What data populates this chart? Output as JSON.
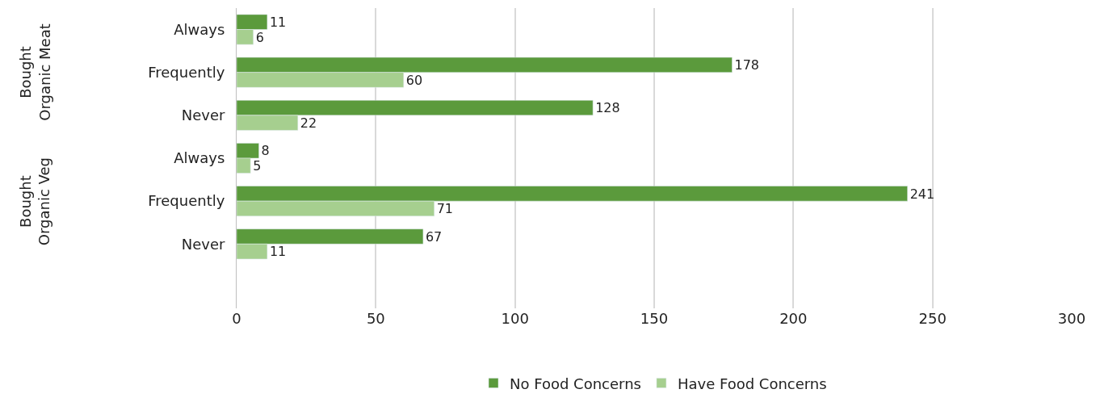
{
  "chart_data": {
    "type": "bar",
    "orientation": "horizontal",
    "categories": [
      "Always",
      "Frequently",
      "Never",
      "Always",
      "Frequently",
      "Never",
      null
    ],
    "series": [
      {
        "name": "No Food Concerns",
        "color": "#5b9a3c",
        "values": [
          11,
          178,
          128,
          8,
          241,
          67,
          null
        ]
      },
      {
        "name": "Have Food Concerns",
        "color": "#a6cf8f",
        "values": [
          6,
          60,
          22,
          5,
          71,
          11,
          null
        ]
      }
    ],
    "annotations": [
      "Bought Organic Meat",
      "Bought Organic Veg"
    ],
    "xlim": [
      0,
      300
    ],
    "xticks": [
      0,
      50,
      100,
      150,
      200,
      250,
      300
    ],
    "grid": "x",
    "legend": "bottom",
    "data_labels": true
  }
}
